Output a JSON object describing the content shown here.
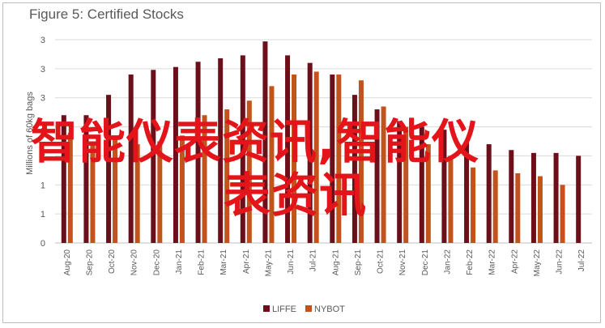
{
  "chart_data": {
    "type": "bar",
    "title": "Figure 5: Certified Stocks",
    "ylabel": "Millions of 60kg bags",
    "xlabel": "",
    "ylim": [
      0,
      3.5
    ],
    "y_tick_labels": [
      "0",
      "1",
      "1",
      "2",
      "2",
      "3",
      "3",
      "3"
    ],
    "categories": [
      "Aug-20",
      "Sep-20",
      "Oct-20",
      "Nov-20",
      "Dec-20",
      "Jan-21",
      "Feb-21",
      "Mar-21",
      "Apr-21",
      "May-21",
      "Jun-21",
      "Jul-21",
      "Aug-21",
      "Sep-21",
      "Oct-21",
      "Nov-21",
      "Dec-21",
      "Jan-22",
      "Feb-22",
      "Mar-22",
      "Apr-22",
      "May-22",
      "Jun-22",
      "Jul-22"
    ],
    "series": [
      {
        "name": "LIFFE",
        "color": "#6b0f1a",
        "values": [
          2.2,
          2.2,
          2.55,
          2.9,
          2.98,
          3.03,
          3.12,
          3.18,
          3.23,
          3.47,
          3.23,
          3.1,
          2.9,
          2.55,
          2.3,
          2.1,
          2.0,
          1.95,
          1.75,
          1.7,
          1.6,
          1.55,
          1.55,
          1.5
        ]
      },
      {
        "name": "NYBOT",
        "color": "#c3531c",
        "values": [
          1.9,
          1.75,
          1.85,
          1.7,
          1.75,
          1.85,
          2.2,
          2.3,
          2.45,
          2.7,
          2.9,
          2.95,
          2.9,
          2.8,
          2.35,
          2.0,
          1.7,
          1.5,
          1.3,
          1.25,
          1.2,
          1.15,
          1.0,
          null
        ]
      }
    ],
    "legend": "bottom",
    "grid": true
  },
  "overlay": {
    "line1": "智能仪表资讯,智能仪",
    "line2": "表资讯"
  }
}
